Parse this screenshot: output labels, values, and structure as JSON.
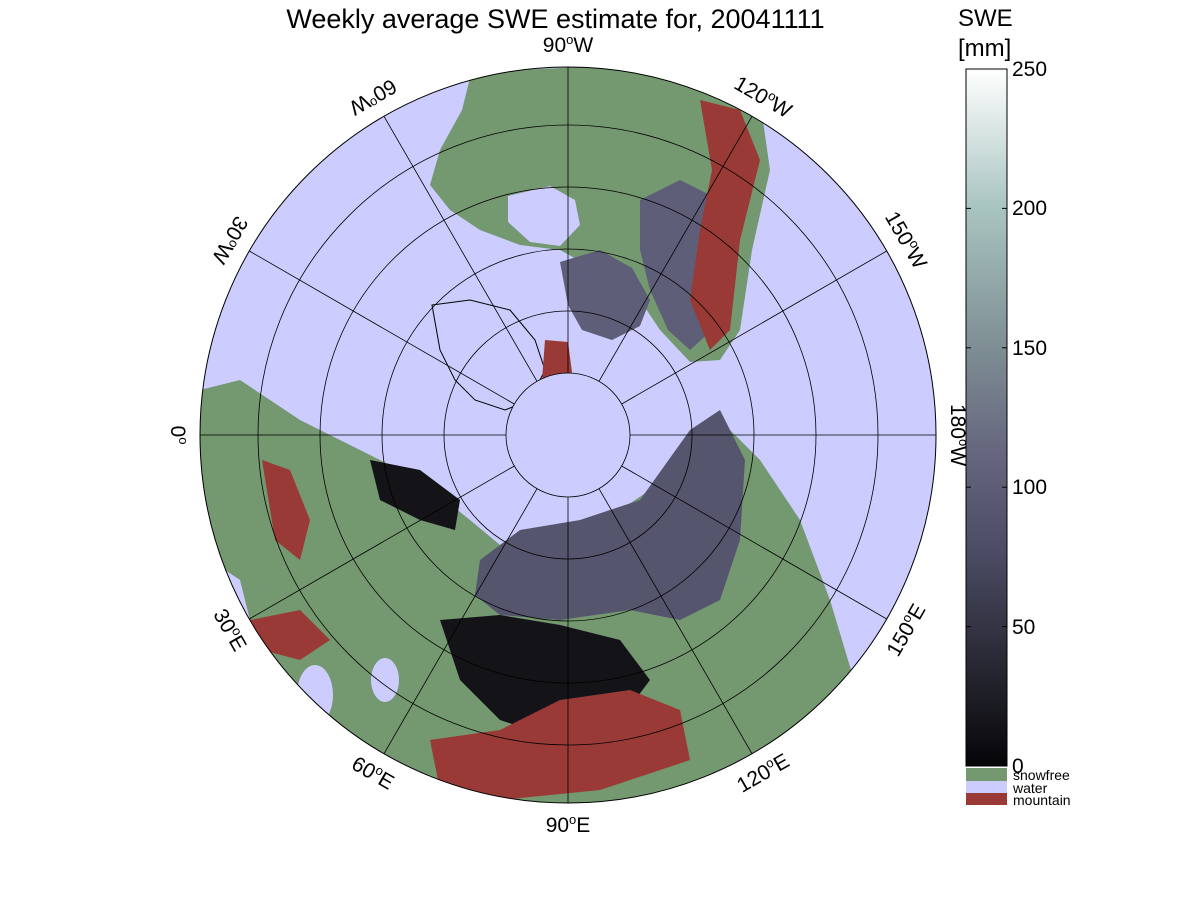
{
  "title": "Weekly average SWE estimate for, 20041111",
  "colorbar": {
    "unit_line1": "SWE",
    "unit_line2": "[mm]",
    "ticks": [
      "250",
      "200",
      "150",
      "100",
      "50",
      "0"
    ],
    "range_mm": [
      0,
      250
    ],
    "categories": [
      {
        "label": "snowfree",
        "color": "#749870"
      },
      {
        "label": "water",
        "color": "#ccccff"
      },
      {
        "label": "mountain",
        "color": "#9a3a36"
      }
    ]
  },
  "longitude_labels": [
    {
      "deg": "90",
      "dir": "W"
    },
    {
      "deg": "120",
      "dir": "W"
    },
    {
      "deg": "150",
      "dir": "W"
    },
    {
      "deg": "180",
      "dir": "W"
    },
    {
      "deg": "150",
      "dir": "E"
    },
    {
      "deg": "120",
      "dir": "E"
    },
    {
      "deg": "90",
      "dir": "E"
    },
    {
      "deg": "60",
      "dir": "E"
    },
    {
      "deg": "30",
      "dir": "E"
    },
    {
      "deg": "0",
      "dir": ""
    },
    {
      "deg": "30",
      "dir": "W"
    },
    {
      "deg": "60",
      "dir": "W"
    }
  ],
  "colors": {
    "water": "#ccccff",
    "snowfree": "#749870",
    "mountain": "#9a3a36",
    "swe_low": "#0a0a10",
    "swe_mid": "#5b5b78",
    "swe_high": "#ffffff"
  }
}
